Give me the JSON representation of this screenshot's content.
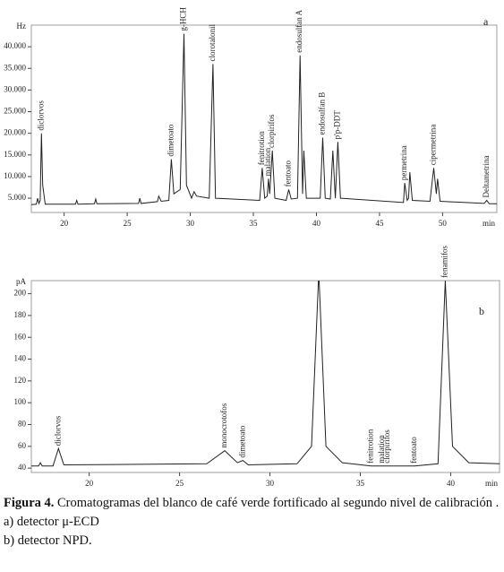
{
  "chart_data": [
    {
      "type": "line",
      "panel_label": "a",
      "y_label": "Hz",
      "x_label": "min",
      "xlim": [
        17.4,
        54.3
      ],
      "xticks": [
        20,
        25,
        30,
        35,
        40,
        45,
        50
      ],
      "ylim": [
        1700,
        45000
      ],
      "yticks": [
        {
          "value": 5000,
          "label": "5.000"
        },
        {
          "value": 10000,
          "label": "10.000"
        },
        {
          "value": 15000,
          "label": "15.000"
        },
        {
          "value": 20000,
          "label": "20.000"
        },
        {
          "value": 25000,
          "label": "25.000"
        },
        {
          "value": 30000,
          "label": "30.000"
        },
        {
          "value": 35000,
          "label": "35.000"
        },
        {
          "value": 40000,
          "label": "40.000"
        }
      ],
      "series": [
        {
          "color": "#222222",
          "x": [
            17.4,
            17.8,
            17.9,
            18.0,
            18.1,
            18.2,
            18.3,
            18.5,
            20.9,
            21.0,
            21.1,
            22.4,
            22.5,
            22.6,
            25.9,
            26.0,
            26.1,
            27.4,
            27.5,
            27.7,
            28.3,
            28.5,
            28.7,
            29.2,
            29.5,
            29.7,
            30.1,
            30.3,
            30.5,
            31.5,
            31.8,
            32.0,
            35.5,
            35.7,
            35.9,
            36.1,
            36.2,
            36.3,
            36.5,
            36.7,
            37.6,
            37.8,
            38.0,
            38.5,
            38.7,
            38.9,
            39.0,
            39.2,
            40.3,
            40.5,
            40.7,
            41.1,
            41.3,
            41.5,
            41.7,
            41.9,
            46.9,
            47.0,
            47.2,
            47.3,
            47.4,
            47.6,
            49.0,
            49.3,
            49.5,
            49.6,
            49.8,
            53.3,
            53.5,
            53.7,
            54.3
          ],
          "values": [
            3500,
            3600,
            5000,
            3800,
            4500,
            20000,
            8000,
            3600,
            3600,
            4500,
            3600,
            3700,
            4800,
            3700,
            3800,
            5000,
            3800,
            4200,
            5500,
            4300,
            4500,
            14000,
            6000,
            7000,
            43000,
            8000,
            5000,
            6500,
            5500,
            5000,
            36000,
            5000,
            4500,
            12000,
            5000,
            5500,
            9500,
            6000,
            16000,
            5000,
            4500,
            7000,
            4800,
            5000,
            38000,
            6000,
            16000,
            5000,
            5000,
            19000,
            5000,
            4800,
            16000,
            5000,
            18000,
            5000,
            4000,
            8500,
            4500,
            5000,
            11000,
            4500,
            4300,
            12000,
            6000,
            9500,
            4300,
            3800,
            4500,
            3700,
            3700
          ]
        }
      ],
      "annotations": [
        {
          "text": "diclorvos",
          "x": 18.2
        },
        {
          "text": "dimetoato",
          "x": 28.5
        },
        {
          "text": "g-HCH",
          "x": 29.5
        },
        {
          "text": "clorotalonil",
          "x": 31.8
        },
        {
          "text": "fenitrotion",
          "x": 35.7
        },
        {
          "text": "malation",
          "x": 36.2
        },
        {
          "text": "clorpirifos",
          "x": 36.5
        },
        {
          "text": "fentoato",
          "x": 37.8
        },
        {
          "text": "endosulfan A",
          "x": 38.7
        },
        {
          "text": "endosulfan B",
          "x": 40.5
        },
        {
          "text": "p'p-DDT",
          "x": 41.7
        },
        {
          "text": "permetrina",
          "x": 47.0
        },
        {
          "text": "cipermetrina",
          "x": 49.3
        },
        {
          "text": "Deltametrina",
          "x": 53.5
        }
      ]
    },
    {
      "type": "line",
      "panel_label": "b",
      "y_label": "pA",
      "x_label": "min",
      "xlim": [
        16.8,
        42.7
      ],
      "xticks": [
        20,
        25,
        30,
        35,
        40
      ],
      "ylim": [
        36,
        212
      ],
      "yticks": [
        40,
        60,
        80,
        100,
        120,
        140,
        160,
        180,
        200
      ],
      "series": [
        {
          "color": "#222222",
          "x": [
            16.8,
            17.2,
            17.3,
            17.4,
            18.0,
            18.3,
            18.6,
            26.5,
            27.5,
            28.2,
            28.5,
            28.8,
            31.5,
            32.3,
            32.7,
            33.1,
            34.0,
            35.6,
            36.2,
            36.5,
            38.0,
            39.3,
            39.7,
            40.1,
            41.0,
            42.7
          ],
          "values": [
            42,
            42,
            45,
            42,
            42,
            58,
            43,
            44,
            56,
            45,
            47,
            43,
            44,
            60,
            220,
            60,
            45,
            42,
            42,
            42,
            42,
            44,
            212,
            60,
            45,
            44
          ]
        }
      ],
      "annotations": [
        {
          "text": "diclorvos",
          "x": 18.3
        },
        {
          "text": "monocrotofos",
          "x": 27.5
        },
        {
          "text": "dimetoato",
          "x": 28.5
        },
        {
          "text": "fenitrotion",
          "x": 35.6
        },
        {
          "text": "malation",
          "x": 36.2
        },
        {
          "text": "clorpirifos",
          "x": 36.5
        },
        {
          "text": "fentoato",
          "x": 38.0
        },
        {
          "text": "fenamifos",
          "x": 39.7
        }
      ]
    }
  ],
  "caption": {
    "label": "Figura 4.",
    "text": "Cromatogramas del blanco de café verde fortificado al segundo nivel de calibración .",
    "items": [
      "a) detector μ-ECD",
      "b) detector NPD."
    ]
  }
}
